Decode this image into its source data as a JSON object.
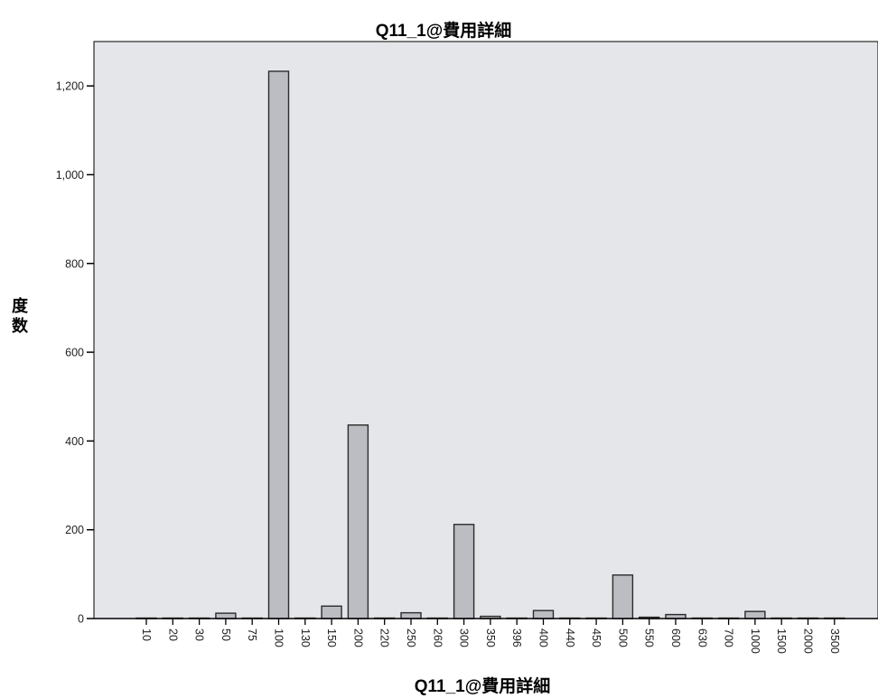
{
  "chart_data": {
    "type": "bar",
    "title": "Q11_1@費用詳細",
    "xlabel": "Q11_1@費用詳細",
    "ylabel": "度数",
    "ylim": [
      0,
      1300
    ],
    "yticks": [
      0,
      200,
      400,
      600,
      800,
      1000,
      1200
    ],
    "ytick_labels": [
      "0",
      "200",
      "400",
      "600",
      "800",
      "1,000",
      "1,200"
    ],
    "grid": false,
    "categories": [
      "10",
      "20",
      "30",
      "50",
      "75",
      "100",
      "130",
      "150",
      "200",
      "220",
      "250",
      "260",
      "300",
      "350",
      "396",
      "400",
      "440",
      "450",
      "500",
      "550",
      "600",
      "630",
      "700",
      "1000",
      "1500",
      "2000",
      "3500"
    ],
    "values": [
      1,
      1,
      1,
      12,
      1,
      1233,
      1,
      28,
      436,
      1,
      13,
      1,
      212,
      5,
      1,
      18,
      1,
      1,
      98,
      3,
      9,
      1,
      1,
      16,
      1,
      1,
      1
    ],
    "colors": {
      "plot_bg": "#e5e6ea",
      "bar_fill": "#bbbdc2",
      "bar_stroke": "#2b2b2b",
      "axis": "#000000"
    }
  }
}
